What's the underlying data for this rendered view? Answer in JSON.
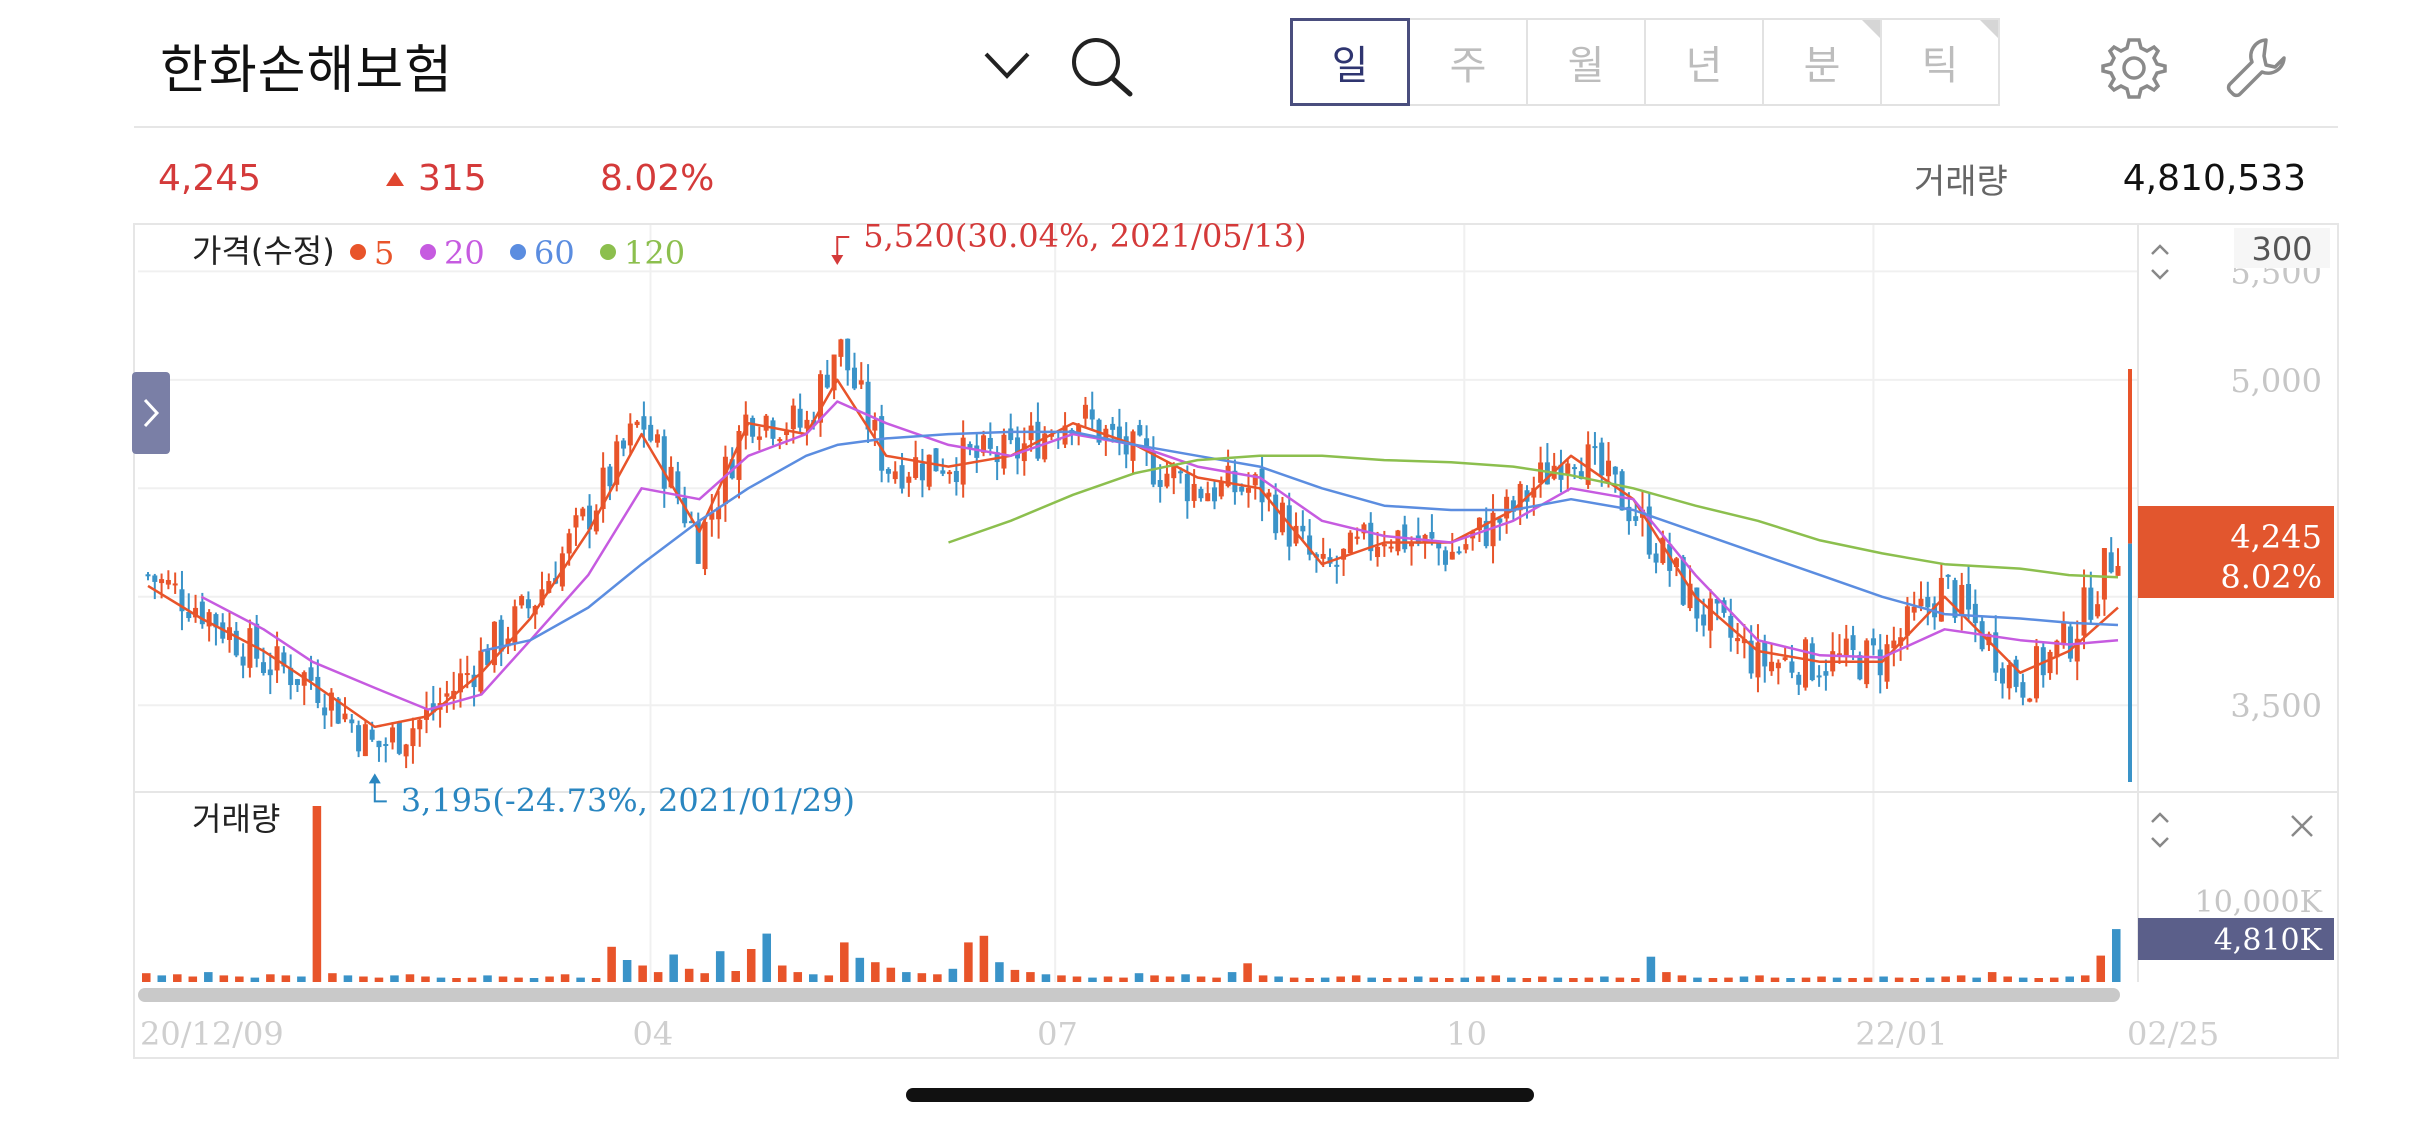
{
  "header": {
    "title": "한화손해보험",
    "icons": {
      "dropdown": "chevron-down-icon",
      "search": "search-icon",
      "settings": "gear-icon",
      "tools": "wrench-icon"
    },
    "period_tabs": [
      {
        "label": "일",
        "active": true,
        "corner": false
      },
      {
        "label": "주",
        "active": false,
        "corner": false
      },
      {
        "label": "월",
        "active": false,
        "corner": false
      },
      {
        "label": "년",
        "active": false,
        "corner": false
      },
      {
        "label": "분",
        "active": false,
        "corner": true
      },
      {
        "label": "틱",
        "active": false,
        "corner": true
      }
    ]
  },
  "quote": {
    "price": "4,245",
    "change": "315",
    "change_pct": "8.02%",
    "volume_label": "거래량",
    "volume": "4,810,533"
  },
  "price_panel": {
    "legend_title": "가격(수정)",
    "ma_legend": [
      {
        "label": "5",
        "color": "#e8542a"
      },
      {
        "label": "20",
        "color": "#c65be0"
      },
      {
        "label": "60",
        "color": "#5b8de0"
      },
      {
        "label": "120",
        "color": "#8cbf4e"
      }
    ],
    "scale_value": "300",
    "y_ticks": [
      "5,500",
      "5,000",
      "3,500"
    ],
    "high_annotation": "5,520(30.04%, 2021/05/13)",
    "low_annotation": "3,195(-24.73%, 2021/01/29)",
    "current_box": {
      "price": "4,245",
      "pct": "8.02%"
    }
  },
  "volume_panel": {
    "label": "거래량",
    "y_tick": "10,000K",
    "current_box": "4,810K"
  },
  "x_axis": {
    "labels": [
      "20/12/09",
      "04",
      "07",
      "10",
      "22/01",
      "02/25"
    ]
  },
  "colors": {
    "up": "#e8542a",
    "down": "#3a93c8",
    "ma5": "#e8542a",
    "ma20": "#c65be0",
    "ma60": "#5b8de0",
    "ma120": "#8cbf4e",
    "accent": "#4a4e7e"
  },
  "chart_data": [
    {
      "type": "line",
      "title": "",
      "series": [
        {
          "name": "가격(수정)",
          "x": [
            "2020-12-09",
            "2020-12-21",
            "2021-01-04",
            "2021-01-15",
            "2021-01-29",
            "2021-02-10",
            "2021-02-22",
            "2021-03-05",
            "2021-03-18",
            "2021-03-30",
            "2021-04-12",
            "2021-04-23",
            "2021-05-06",
            "2021-05-13",
            "2021-05-24",
            "2021-06-07",
            "2021-06-21",
            "2021-07-05",
            "2021-07-19",
            "2021-08-02",
            "2021-08-16",
            "2021-08-30",
            "2021-09-13",
            "2021-09-28",
            "2021-10-12",
            "2021-10-25",
            "2021-11-08",
            "2021-11-22",
            "2021-12-06",
            "2021-12-20",
            "2022-01-03",
            "2022-01-17",
            "2022-02-03",
            "2022-02-14",
            "2022-02-25"
          ],
          "values": [
            4100,
            3950,
            3700,
            3620,
            3300,
            3450,
            3720,
            3960,
            4380,
            4820,
            4250,
            4850,
            4780,
            5180,
            4600,
            4630,
            4650,
            4850,
            4650,
            4500,
            4500,
            4100,
            4300,
            4200,
            4400,
            4700,
            4400,
            3950,
            3700,
            3700,
            3720,
            4050,
            3600,
            3800,
            4245
          ]
        },
        {
          "name": "5",
          "values": [
            4050,
            3900,
            3750,
            3600,
            3400,
            3450,
            3650,
            3900,
            4300,
            4750,
            4300,
            4800,
            4750,
            5000,
            4650,
            4600,
            4650,
            4800,
            4700,
            4550,
            4500,
            4150,
            4250,
            4250,
            4400,
            4650,
            4450,
            4000,
            3750,
            3700,
            3700,
            4000,
            3650,
            3750,
            3950
          ]
        },
        {
          "name": "20",
          "values": [
            null,
            4000,
            3850,
            3700,
            3580,
            3480,
            3550,
            3800,
            4100,
            4500,
            4450,
            4650,
            4750,
            4900,
            4800,
            4700,
            4650,
            4750,
            4700,
            4600,
            4550,
            4350,
            4280,
            4250,
            4350,
            4500,
            4450,
            4100,
            3800,
            3730,
            3720,
            3850,
            3800,
            3780,
            3800
          ]
        },
        {
          "name": "60",
          "values": [
            null,
            null,
            null,
            null,
            null,
            null,
            3750,
            3800,
            3950,
            4150,
            4350,
            4500,
            4650,
            4700,
            4730,
            4750,
            4760,
            4760,
            4700,
            4650,
            4600,
            4500,
            4420,
            4400,
            4400,
            4450,
            4400,
            4300,
            4200,
            4100,
            4000,
            3920,
            3900,
            3880,
            3870
          ]
        },
        {
          "name": "120",
          "values": [
            null,
            null,
            null,
            null,
            null,
            null,
            null,
            null,
            null,
            null,
            null,
            null,
            null,
            null,
            null,
            4250,
            4350,
            4470,
            4570,
            4630,
            4650,
            4650,
            4630,
            4620,
            4600,
            4560,
            4500,
            4420,
            4350,
            4260,
            4200,
            4150,
            4130,
            4100,
            4090
          ]
        }
      ],
      "ylabel": "",
      "ylim": [
        3100,
        5700
      ],
      "grid": true,
      "high": {
        "value": 5520,
        "pct": "30.04%",
        "date": "2021/05/13"
      },
      "low": {
        "value": 3195,
        "pct": "-24.73%",
        "date": "2021/01/29"
      }
    },
    {
      "type": "bar",
      "title": "거래량",
      "ylim": [
        0,
        16000
      ],
      "unit": "K",
      "values_k": [
        800,
        600,
        700,
        500,
        900,
        600,
        500,
        400,
        700,
        600,
        500,
        16000,
        800,
        600,
        500,
        400,
        600,
        700,
        500,
        400,
        300,
        400,
        600,
        500,
        400,
        300,
        500,
        700,
        400,
        300,
        3200,
        2000,
        1500,
        900,
        2500,
        1200,
        800,
        2800,
        1000,
        3000,
        4400,
        1500,
        900,
        700,
        600,
        3600,
        2200,
        1800,
        1300,
        900,
        800,
        700,
        1200,
        3600,
        4200,
        1800,
        1100,
        900,
        700,
        600,
        500,
        400,
        500,
        400,
        800,
        600,
        500,
        700,
        500,
        400,
        900,
        1700,
        600,
        500,
        400,
        300,
        400,
        500,
        600,
        400,
        300,
        400,
        500,
        400,
        300,
        400,
        500,
        600,
        400,
        300,
        500,
        400,
        300,
        400,
        500,
        400,
        300,
        2300,
        900,
        600,
        400,
        300,
        400,
        500,
        600,
        400,
        300,
        400,
        500,
        400,
        300,
        400,
        500,
        400,
        300,
        400,
        500,
        600,
        400,
        900,
        500,
        400,
        300,
        400,
        500,
        600,
        2400,
        4810
      ]
    }
  ]
}
